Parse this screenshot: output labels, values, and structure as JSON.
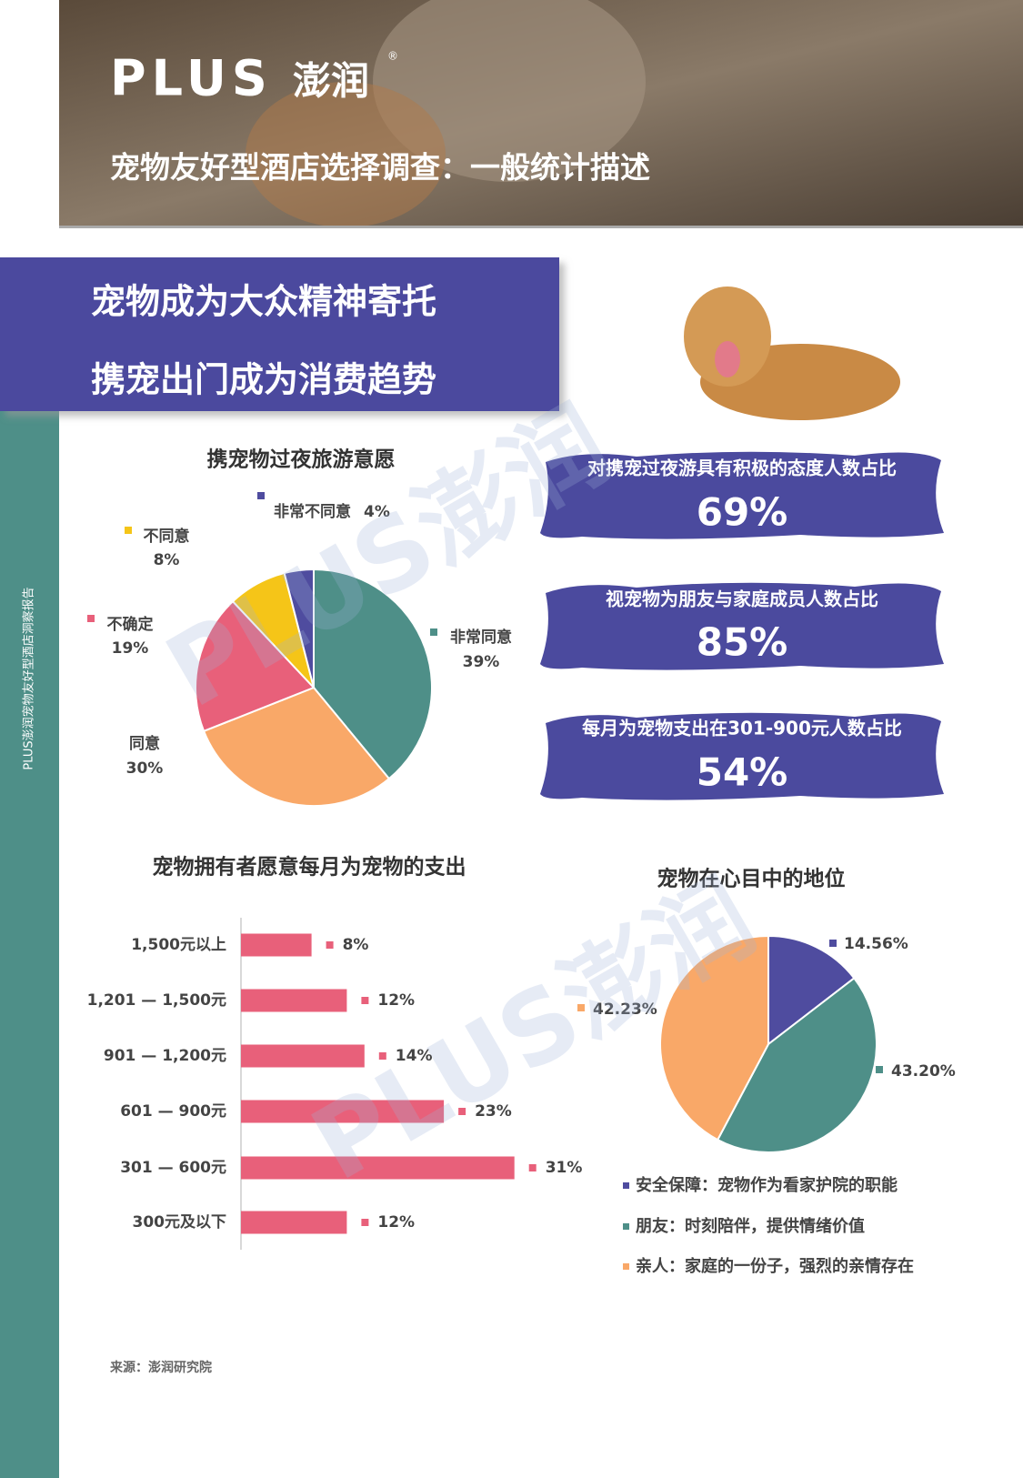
{
  "header": {
    "logo": "PLUS",
    "logo_cn": "澎润",
    "registered": "®",
    "title": "宠物友好型酒店选择调查：一般统计描述"
  },
  "sidebar": "PLUS澎润宠物友好型酒店洞察报告",
  "banner": [
    "宠物成为大众精神寄托",
    "携宠出门成为消费趋势"
  ],
  "watermark": "PLUS澎润",
  "stats": [
    {
      "label": "对携宠过夜游具有积极的态度人数占比",
      "value": "69%"
    },
    {
      "label": "视宠物为朋友与家庭成员人数占比",
      "value": "85%"
    },
    {
      "label": "每月为宠物支出在301-900元人数占比",
      "value": "54%"
    }
  ],
  "chart_data": [
    {
      "type": "pie",
      "title": "携宠物过夜旅游意愿",
      "categories": [
        "非常同意",
        "同意",
        "不确定",
        "不同意",
        "非常不同意"
      ],
      "values": [
        39,
        30,
        19,
        8,
        4
      ],
      "value_labels": [
        "39%",
        "30%",
        "19%",
        "8%",
        "4%"
      ],
      "colors": [
        "#4e8f88",
        "#f9a868",
        "#e8607a",
        "#f5c518",
        "#4f4c9f"
      ]
    },
    {
      "type": "bar",
      "orientation": "horizontal",
      "title": "宠物拥有者愿意每月为宠物的支出",
      "categories": [
        "1,500元以上",
        "1,201 — 1,500元",
        "901 — 1,200元",
        "601 — 900元",
        "301 — 600元",
        "300元及以下"
      ],
      "values": [
        8,
        12,
        14,
        23,
        31,
        12
      ],
      "value_labels": [
        "8%",
        "12%",
        "14%",
        "23%",
        "31%",
        "12%"
      ],
      "color": "#e8607a"
    },
    {
      "type": "pie",
      "title": "宠物在心目中的地位",
      "categories": [
        "安全保障：宠物作为看家护院的职能",
        "朋友：时刻陪伴，提供情绪价值",
        "亲人：家庭的一份子，强烈的亲情存在"
      ],
      "values": [
        14.56,
        43.2,
        42.23
      ],
      "value_labels": [
        "14.56%",
        "43.20%",
        "42.23%"
      ],
      "colors": [
        "#4f4c9f",
        "#4e8f88",
        "#f9a868"
      ],
      "legend": "bottom"
    }
  ],
  "source": "来源：澎润研究院"
}
